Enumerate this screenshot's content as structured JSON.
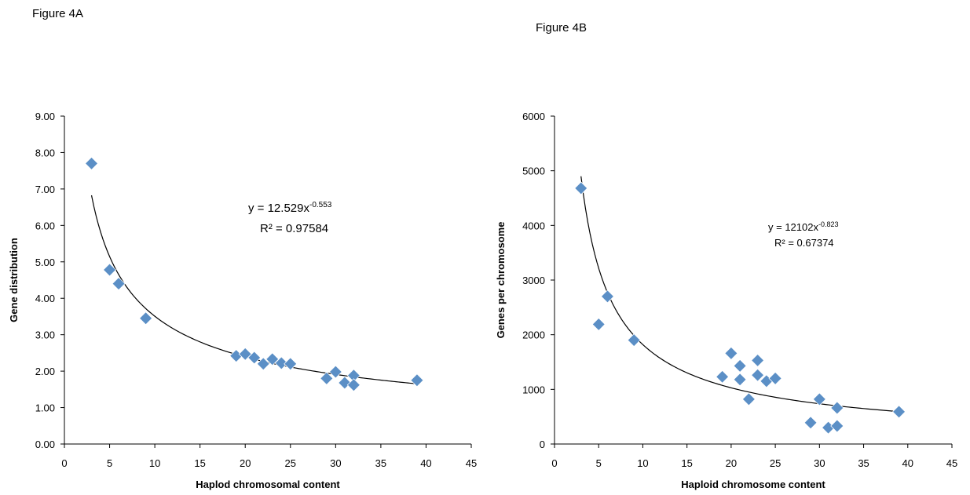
{
  "chart_data": [
    {
      "type": "scatter",
      "title": "Figure 4A",
      "xlabel": "Haplod chromosomal content",
      "ylabel": "Gene distribution",
      "xlim": [
        0,
        45
      ],
      "ylim": [
        0,
        9
      ],
      "x_ticks": [
        "0",
        "5",
        "10",
        "15",
        "20",
        "25",
        "30",
        "35",
        "40",
        "45"
      ],
      "y_ticks": [
        "0.00",
        "1.00",
        "2.00",
        "3.00",
        "4.00",
        "5.00",
        "6.00",
        "7.00",
        "8.00",
        "9.00"
      ],
      "marker_color": "#5b8fc6",
      "points": [
        [
          3,
          7.7
        ],
        [
          5,
          4.78
        ],
        [
          6,
          4.4
        ],
        [
          9,
          3.45
        ],
        [
          19,
          2.42
        ],
        [
          20,
          2.47
        ],
        [
          21,
          2.37
        ],
        [
          22,
          2.2
        ],
        [
          23,
          2.33
        ],
        [
          24,
          2.22
        ],
        [
          25,
          2.2
        ],
        [
          29,
          1.8
        ],
        [
          30,
          1.98
        ],
        [
          31,
          1.68
        ],
        [
          32,
          1.88
        ],
        [
          32,
          1.62
        ],
        [
          39,
          1.75
        ]
      ],
      "trendline": {
        "type": "power",
        "a": 12.529,
        "b": -0.553,
        "x_range": [
          3,
          39
        ]
      },
      "equation_label": {
        "main": "y = 12.529x",
        "exponent": "-0.553",
        "r2": "R² = 0.97584"
      }
    },
    {
      "type": "scatter",
      "title": "Figure 4B",
      "xlabel": "Haploid chromosome content",
      "ylabel": "Genes per chromosome",
      "xlim": [
        0,
        45
      ],
      "ylim": [
        0,
        6000
      ],
      "x_ticks": [
        "0",
        "5",
        "10",
        "15",
        "20",
        "25",
        "30",
        "35",
        "40",
        "45"
      ],
      "y_ticks": [
        "0",
        "1000",
        "2000",
        "3000",
        "4000",
        "5000",
        "6000"
      ],
      "marker_color": "#5b8fc6",
      "points": [
        [
          3,
          4680
        ],
        [
          5,
          2190
        ],
        [
          6,
          2700
        ],
        [
          9,
          1900
        ],
        [
          19,
          1230
        ],
        [
          20,
          1660
        ],
        [
          21,
          1430
        ],
        [
          21,
          1180
        ],
        [
          22,
          820
        ],
        [
          23,
          1530
        ],
        [
          23,
          1260
        ],
        [
          24,
          1150
        ],
        [
          25,
          1200
        ],
        [
          29,
          390
        ],
        [
          30,
          820
        ],
        [
          31,
          300
        ],
        [
          32,
          330
        ],
        [
          32,
          660
        ],
        [
          39,
          590
        ]
      ],
      "trendline": {
        "type": "power",
        "a": 12102,
        "b": -0.823,
        "x_range": [
          3,
          39
        ]
      },
      "equation_label": {
        "main": "y = 12102x",
        "exponent": "-0.823",
        "r2": "R² = 0.67374"
      }
    }
  ]
}
